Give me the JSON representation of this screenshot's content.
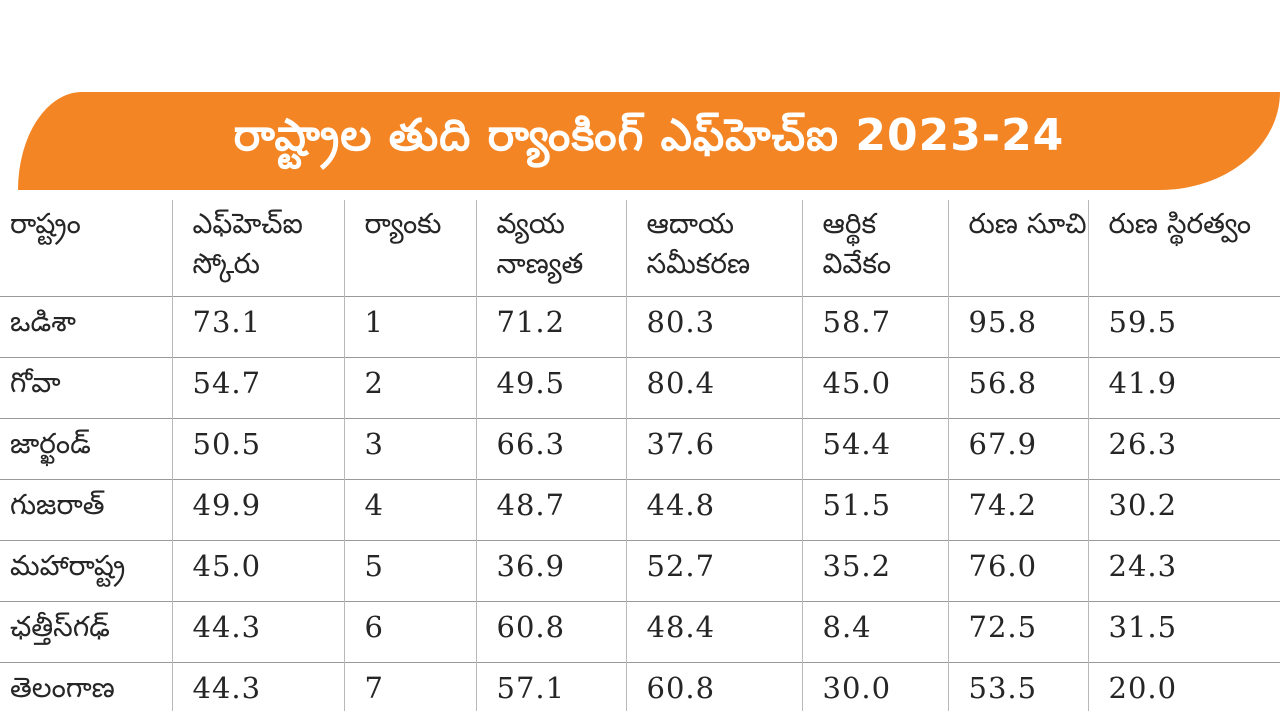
{
  "title": "రాష్ట్రాల తుది ర్యాంకింగ్ ఎఫ్‌హెచ్ఐ 2023-24",
  "colors": {
    "banner": "#f38524",
    "banner_text": "#ffffff",
    "text": "#262626",
    "grid": "#b8b8b8"
  },
  "table": {
    "headers": [
      "రాష్ట్రం",
      "ఎఫ్‌హెచ్ఐ స్కోరు",
      "ర్యాంకు",
      "వ్యయ నాణ్యత",
      "ఆదాయ సమీకరణ",
      "ఆర్థిక వివేకం",
      "రుణ సూచి",
      "రుణ స్థిరత్వం"
    ],
    "rows": [
      [
        "ఒడిశా",
        "73.1",
        "1",
        "71.2",
        "80.3",
        "58.7",
        "95.8",
        "59.5"
      ],
      [
        "గోవా",
        "54.7",
        "2",
        "49.5",
        "80.4",
        "45.0",
        "56.8",
        "41.9"
      ],
      [
        "జార్ఖండ్",
        "50.5",
        "3",
        "66.3",
        "37.6",
        "54.4",
        "67.9",
        "26.3"
      ],
      [
        "గుజరాత్",
        "49.9",
        "4",
        "48.7",
        "44.8",
        "51.5",
        "74.2",
        "30.2"
      ],
      [
        "మహారాష్ట్ర",
        "45.0",
        "5",
        "36.9",
        "52.7",
        "35.2",
        "76.0",
        "24.3"
      ],
      [
        "ఛత్తీస్‌గఢ్",
        "44.3",
        "6",
        "60.8",
        "48.4",
        "8.4",
        "72.5",
        "31.5"
      ],
      [
        "తెలంగాణ",
        "44.3",
        "7",
        "57.1",
        "60.8",
        "30.0",
        "53.5",
        "20.0"
      ]
    ]
  }
}
